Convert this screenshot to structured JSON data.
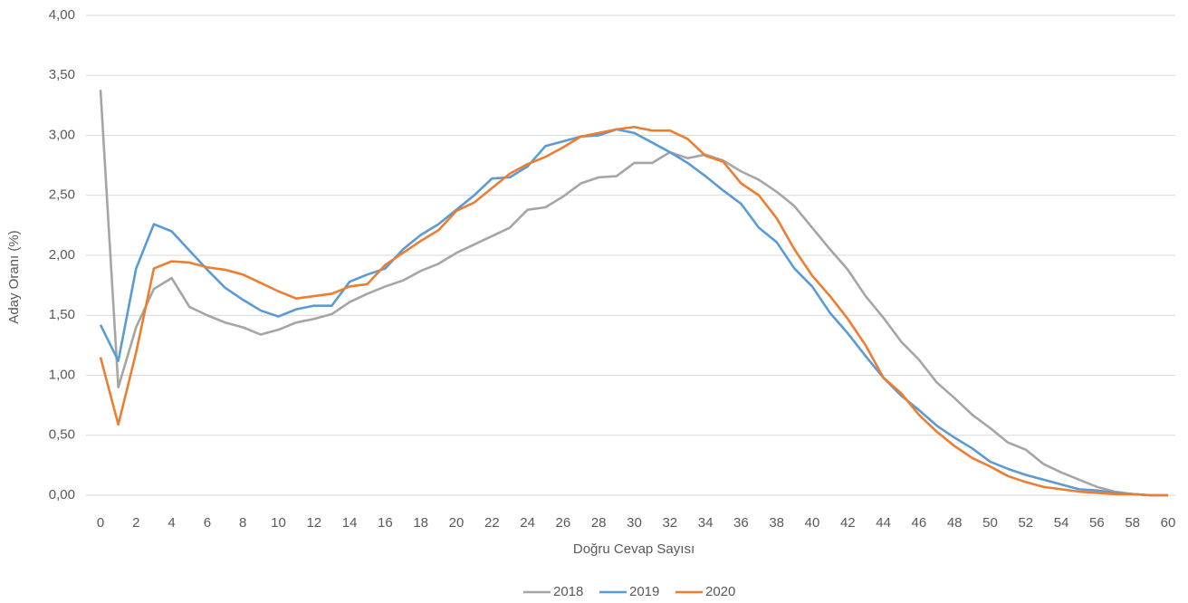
{
  "chart_data": {
    "type": "line",
    "x_label": "Doğru Cevap Sayısı",
    "y_label": "Aday Oranı (%)",
    "x": [
      0,
      1,
      2,
      3,
      4,
      5,
      6,
      7,
      8,
      9,
      10,
      11,
      12,
      13,
      14,
      15,
      16,
      17,
      18,
      19,
      20,
      21,
      22,
      23,
      24,
      25,
      26,
      27,
      28,
      29,
      30,
      31,
      32,
      33,
      34,
      35,
      36,
      37,
      38,
      39,
      40,
      41,
      42,
      43,
      44,
      45,
      46,
      47,
      48,
      49,
      50,
      51,
      52,
      53,
      54,
      55,
      56,
      57,
      58,
      59,
      60
    ],
    "series": [
      {
        "name": "2018",
        "color": "#a5a5a5",
        "values": [
          3.38,
          0.9,
          1.4,
          1.72,
          1.81,
          1.57,
          1.5,
          1.44,
          1.4,
          1.34,
          1.38,
          1.44,
          1.47,
          1.51,
          1.61,
          1.68,
          1.74,
          1.79,
          1.87,
          1.93,
          2.02,
          2.09,
          2.16,
          2.23,
          2.38,
          2.4,
          2.49,
          2.6,
          2.65,
          2.66,
          2.77,
          2.77,
          2.86,
          2.81,
          2.84,
          2.79,
          2.7,
          2.63,
          2.53,
          2.41,
          2.23,
          2.05,
          1.88,
          1.66,
          1.48,
          1.28,
          1.13,
          0.94,
          0.81,
          0.67,
          0.56,
          0.44,
          0.38,
          0.26,
          0.19,
          0.13,
          0.07,
          0.03,
          0.01,
          0.0,
          0.0
        ]
      },
      {
        "name": "2019",
        "color": "#5b9bd5",
        "values": [
          1.42,
          1.12,
          1.89,
          2.26,
          2.2,
          2.04,
          1.88,
          1.73,
          1.63,
          1.54,
          1.49,
          1.55,
          1.58,
          1.58,
          1.78,
          1.84,
          1.89,
          2.05,
          2.17,
          2.26,
          2.38,
          2.5,
          2.64,
          2.65,
          2.74,
          2.91,
          2.95,
          2.99,
          3.0,
          3.05,
          3.02,
          2.94,
          2.86,
          2.77,
          2.66,
          2.54,
          2.43,
          2.23,
          2.11,
          1.89,
          1.74,
          1.52,
          1.35,
          1.16,
          0.98,
          0.83,
          0.71,
          0.58,
          0.48,
          0.39,
          0.28,
          0.22,
          0.17,
          0.13,
          0.09,
          0.05,
          0.04,
          0.02,
          0.01,
          0.0,
          0.0
        ]
      },
      {
        "name": "2020",
        "color": "#ed7d31",
        "values": [
          1.15,
          0.59,
          1.19,
          1.89,
          1.95,
          1.94,
          1.9,
          1.88,
          1.84,
          1.77,
          1.7,
          1.64,
          1.66,
          1.68,
          1.74,
          1.76,
          1.92,
          2.02,
          2.12,
          2.21,
          2.37,
          2.44,
          2.56,
          2.68,
          2.76,
          2.82,
          2.9,
          2.99,
          3.02,
          3.05,
          3.07,
          3.04,
          3.04,
          2.97,
          2.83,
          2.78,
          2.6,
          2.5,
          2.31,
          2.05,
          1.83,
          1.66,
          1.47,
          1.25,
          0.98,
          0.85,
          0.67,
          0.53,
          0.41,
          0.31,
          0.24,
          0.16,
          0.11,
          0.07,
          0.05,
          0.03,
          0.02,
          0.01,
          0.01,
          0.0,
          0.0
        ]
      }
    ],
    "xlim": [
      0,
      60
    ],
    "xticks": [
      0,
      2,
      4,
      6,
      8,
      10,
      12,
      14,
      16,
      18,
      20,
      22,
      24,
      26,
      28,
      30,
      32,
      34,
      36,
      38,
      40,
      42,
      44,
      46,
      48,
      50,
      52,
      54,
      56,
      58,
      60
    ],
    "ylim": [
      0,
      4
    ],
    "yticks": [
      {
        "value": 0,
        "label": "0,00"
      },
      {
        "value": 0.5,
        "label": "0,50"
      },
      {
        "value": 1,
        "label": "1,00"
      },
      {
        "value": 1.5,
        "label": "1,50"
      },
      {
        "value": 2,
        "label": "2,00"
      },
      {
        "value": 2.5,
        "label": "2,50"
      },
      {
        "value": 3,
        "label": "3,00"
      },
      {
        "value": 3.5,
        "label": "3,50"
      },
      {
        "value": 4,
        "label": "4,00"
      }
    ],
    "grid": true,
    "legend": "bottom"
  }
}
